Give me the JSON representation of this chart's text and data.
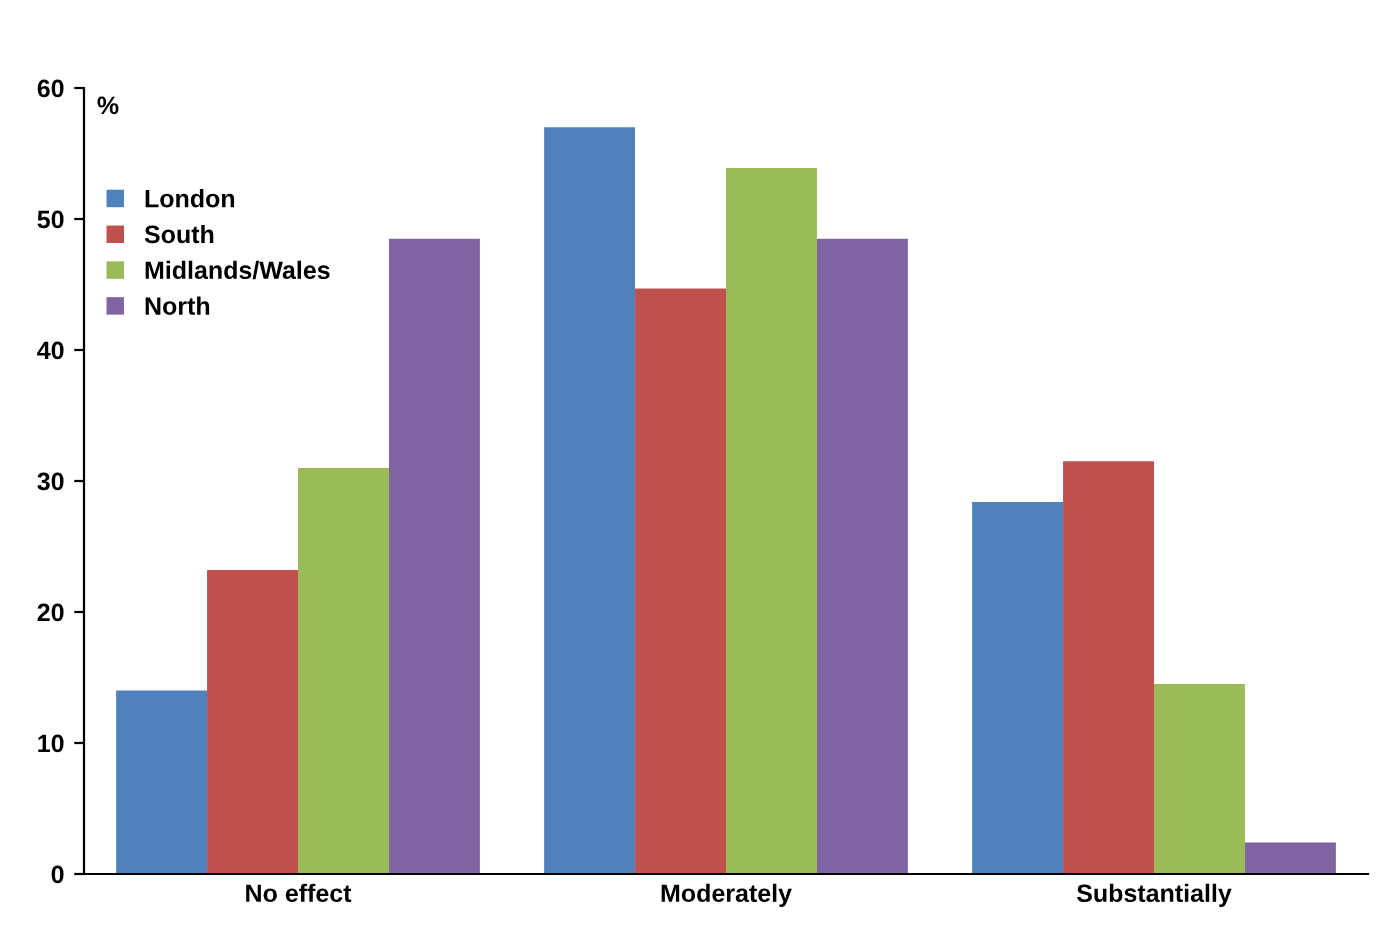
{
  "chart_data": {
    "type": "bar",
    "ylabel": "%",
    "categories": [
      "No effect",
      "Moderately",
      "Substantially"
    ],
    "series": [
      {
        "name": "London",
        "color": "#4f81bd",
        "values": [
          14.0,
          57.0,
          28.4
        ]
      },
      {
        "name": "South",
        "color": "#c0504d",
        "values": [
          23.2,
          44.7,
          31.5
        ]
      },
      {
        "name": "Midlands/Wales",
        "color": "#9bbb59",
        "values": [
          31.0,
          53.9,
          14.5
        ]
      },
      {
        "name": "North",
        "color": "#8064a2",
        "values": [
          48.5,
          48.5,
          2.4
        ]
      }
    ],
    "ylim": [
      0,
      60
    ],
    "yticks": [
      0,
      10,
      20,
      30,
      40,
      50,
      60
    ],
    "grid": false,
    "legend": "top left"
  }
}
